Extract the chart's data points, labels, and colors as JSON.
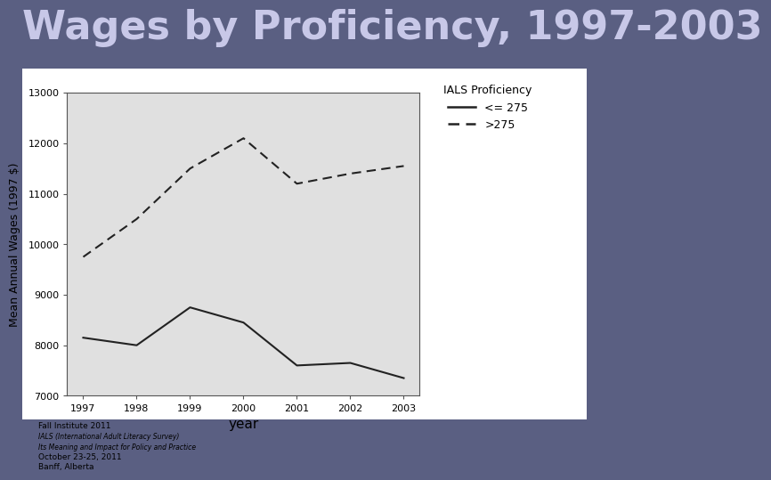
{
  "title": "Wages by Proficiency, 1997-2003",
  "title_fontsize": 32,
  "title_color": "#c8c8e8",
  "background_color": "#5a5f82",
  "outer_box_color": "#ffffff",
  "plot_bg_color": "#e0e0e0",
  "years": [
    1997,
    1998,
    1999,
    2000,
    2001,
    2002,
    2003
  ],
  "low_proficiency": [
    8150,
    8000,
    8750,
    8450,
    7600,
    7650,
    7350
  ],
  "high_proficiency": [
    9750,
    10500,
    11500,
    12100,
    11200,
    11400,
    11550
  ],
  "xlabel": "year",
  "ylabel": "Mean Annual Wages (1997 $)",
  "xlabel_fontsize": 11,
  "ylabel_fontsize": 9,
  "ylim": [
    7000,
    13000
  ],
  "yticks": [
    7000,
    8000,
    9000,
    10000,
    11000,
    12000,
    13000
  ],
  "legend_title": "IALS Proficiency",
  "legend_low": "<= 275",
  "legend_high": ">275",
  "line_color": "#222222",
  "tick_fontsize": 8,
  "footnote_lines": [
    "Fall Institute 2011",
    "IALS (International Adult Literacy Survey)",
    "Its Meaning and Impact for Policy and Practice",
    "October 23-25, 2011",
    "Banff, Alberta"
  ]
}
